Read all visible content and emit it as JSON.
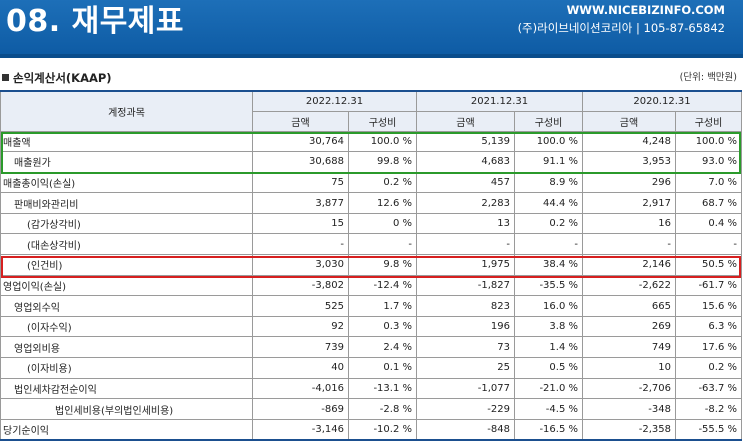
{
  "header": {
    "title": "08. 재무제표",
    "website": "WWW.NICEBIZINFO.COM",
    "company_info": "(주)라이브네이션코리아 | 105-87-65842",
    "colors": {
      "banner": "#0d5aa3"
    }
  },
  "section": {
    "title": "손익계산서(KAAP)",
    "unit": "(단위: 백만원)"
  },
  "table": {
    "account_header": "계정과목",
    "periods": [
      "2022.12.31",
      "2021.12.31",
      "2020.12.31"
    ],
    "sub_amount": "금액",
    "sub_ratio": "구성비",
    "rows": [
      {
        "label": "매출액",
        "values": [
          "30,764",
          "100.0 %",
          "5,139",
          "100.0 %",
          "4,248",
          "100.0 %"
        ]
      },
      {
        "label": "매출원가",
        "values": [
          "30,688",
          "99.8 %",
          "4,683",
          "91.1 %",
          "3,953",
          "93.0 %"
        ]
      },
      {
        "label": "매출총이익(손실)",
        "values": [
          "75",
          "0.2 %",
          "457",
          "8.9 %",
          "296",
          "7.0 %"
        ]
      },
      {
        "label": "판매비와관리비",
        "values": [
          "3,877",
          "12.6 %",
          "2,283",
          "44.4 %",
          "2,917",
          "68.7 %"
        ]
      },
      {
        "label": "(감가상각비)",
        "values": [
          "15",
          "0 %",
          "13",
          "0.2 %",
          "16",
          "0.4 %"
        ]
      },
      {
        "label": "(대손상각비)",
        "values": [
          "-",
          "-",
          "-",
          "-",
          "-",
          "-"
        ]
      },
      {
        "label": "(인건비)",
        "values": [
          "3,030",
          "9.8 %",
          "1,975",
          "38.4 %",
          "2,146",
          "50.5 %"
        ]
      },
      {
        "label": "영업이익(손실)",
        "values": [
          "-3,802",
          "-12.4 %",
          "-1,827",
          "-35.5 %",
          "-2,622",
          "-61.7 %"
        ]
      },
      {
        "label": "영업외수익",
        "values": [
          "525",
          "1.7 %",
          "823",
          "16.0 %",
          "665",
          "15.6 %"
        ]
      },
      {
        "label": "(이자수익)",
        "values": [
          "92",
          "0.3 %",
          "196",
          "3.8 %",
          "269",
          "6.3 %"
        ]
      },
      {
        "label": "영업외비용",
        "values": [
          "739",
          "2.4 %",
          "73",
          "1.4 %",
          "749",
          "17.6 %"
        ]
      },
      {
        "label": "(이자비용)",
        "values": [
          "40",
          "0.1 %",
          "25",
          "0.5 %",
          "10",
          "0.2 %"
        ]
      },
      {
        "label": "법인세차감전순이익",
        "values": [
          "-4,016",
          "-13.1 %",
          "-1,077",
          "-21.0 %",
          "-2,706",
          "-63.7 %"
        ]
      },
      {
        "label": "법인세비용(부의법인세비용)",
        "values": [
          "-869",
          "-2.8 %",
          "-229",
          "-4.5 %",
          "-348",
          "-8.2 %"
        ]
      },
      {
        "label": "당기순이익",
        "values": [
          "-3,146",
          "-10.2 %",
          "-848",
          "-16.5 %",
          "-2,358",
          "-55.5 %"
        ]
      }
    ]
  },
  "highlights": {
    "green": "#2b9a2b",
    "red": "#d62020"
  }
}
